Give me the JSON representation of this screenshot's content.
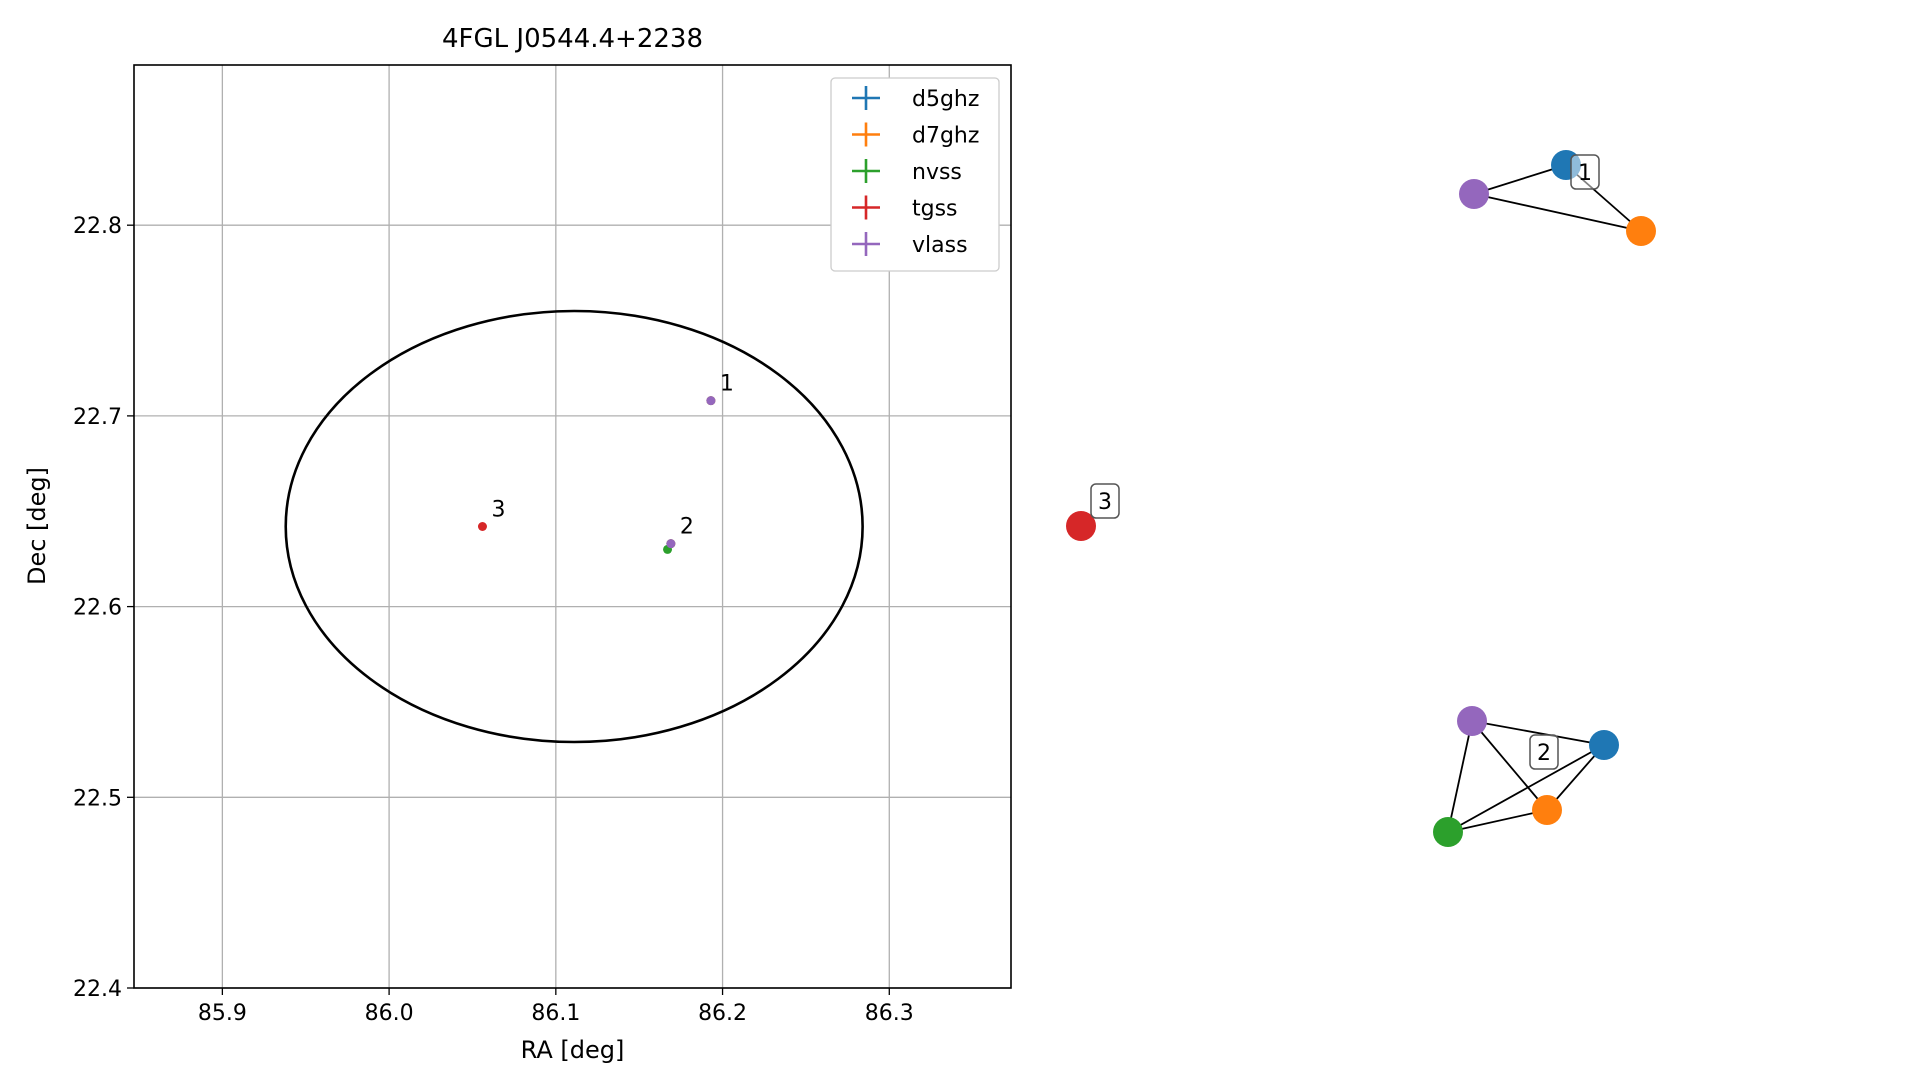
{
  "colors": {
    "d5ghz": "#1f77b4",
    "d7ghz": "#ff7f0e",
    "nvss": "#2ca02c",
    "tgss": "#d62728",
    "vlass": "#9467bd",
    "grid": "#b0b0b0",
    "frame": "#000000"
  },
  "chart_data": [
    {
      "type": "scatter",
      "title": "4FGL J0544.4+2238",
      "xlabel": "RA [deg]",
      "ylabel": "Dec [deg]",
      "xlim": [
        85.847,
        86.373
      ],
      "ylim": [
        22.4,
        22.884
      ],
      "x_ticks": [
        85.9,
        86.0,
        86.1,
        86.2,
        86.3
      ],
      "x_tick_labels": [
        "85.9",
        "86.0",
        "86.1",
        "86.2",
        "86.3"
      ],
      "y_ticks": [
        22.4,
        22.5,
        22.6,
        22.7,
        22.8
      ],
      "y_tick_labels": [
        "22.4",
        "22.5",
        "22.6",
        "22.7",
        "22.8"
      ],
      "grid": true,
      "legend_position": "upper-right",
      "legend": [
        {
          "label": "d5ghz",
          "color": "#1f77b4"
        },
        {
          "label": "d7ghz",
          "color": "#ff7f0e"
        },
        {
          "label": "nvss",
          "color": "#2ca02c"
        },
        {
          "label": "tgss",
          "color": "#d62728"
        },
        {
          "label": "vlass",
          "color": "#9467bd"
        }
      ],
      "series": [
        {
          "name": "d5ghz",
          "color": "#1f77b4",
          "points": [
            {
              "x": 86.193,
              "y": 22.708
            },
            {
              "x": 86.169,
              "y": 22.633
            }
          ]
        },
        {
          "name": "d7ghz",
          "color": "#ff7f0e",
          "points": [
            {
              "x": 86.193,
              "y": 22.708
            },
            {
              "x": 86.169,
              "y": 22.633
            }
          ]
        },
        {
          "name": "nvss",
          "color": "#2ca02c",
          "points": [
            {
              "x": 86.167,
              "y": 22.63
            }
          ]
        },
        {
          "name": "tgss",
          "color": "#d62728",
          "points": [
            {
              "x": 86.056,
              "y": 22.642
            }
          ]
        },
        {
          "name": "vlass",
          "color": "#9467bd",
          "points": [
            {
              "x": 86.193,
              "y": 22.708
            },
            {
              "x": 86.169,
              "y": 22.633
            }
          ]
        }
      ],
      "annotations": [
        {
          "text": "1",
          "x": 86.193,
          "y": 22.708
        },
        {
          "text": "2",
          "x": 86.169,
          "y": 22.633
        },
        {
          "text": "3",
          "x": 86.056,
          "y": 22.642
        }
      ],
      "ellipse": {
        "center_ra": 86.111,
        "center_dec": 22.642,
        "ra_halfwidth": 0.173,
        "dec_halfheight": 0.113
      }
    },
    {
      "type": "network",
      "title": "",
      "groups": [
        {
          "label": "1",
          "nodes": [
            {
              "id": "d5ghz",
              "color": "#1f77b4"
            },
            {
              "id": "d7ghz",
              "color": "#ff7f0e"
            },
            {
              "id": "vlass",
              "color": "#9467bd"
            }
          ],
          "edges": [
            [
              "vlass",
              "d5ghz"
            ],
            [
              "d5ghz",
              "d7ghz"
            ],
            [
              "vlass",
              "d7ghz"
            ]
          ]
        },
        {
          "label": "2",
          "nodes": [
            {
              "id": "vlass",
              "color": "#9467bd"
            },
            {
              "id": "d5ghz",
              "color": "#1f77b4"
            },
            {
              "id": "d7ghz",
              "color": "#ff7f0e"
            },
            {
              "id": "nvss",
              "color": "#2ca02c"
            }
          ],
          "edges": [
            [
              "vlass",
              "d5ghz"
            ],
            [
              "vlass",
              "d7ghz"
            ],
            [
              "vlass",
              "nvss"
            ],
            [
              "d5ghz",
              "d7ghz"
            ],
            [
              "d5ghz",
              "nvss"
            ],
            [
              "d7ghz",
              "nvss"
            ]
          ]
        },
        {
          "label": "3",
          "nodes": [
            {
              "id": "tgss",
              "color": "#d62728"
            }
          ],
          "edges": []
        }
      ]
    }
  ]
}
